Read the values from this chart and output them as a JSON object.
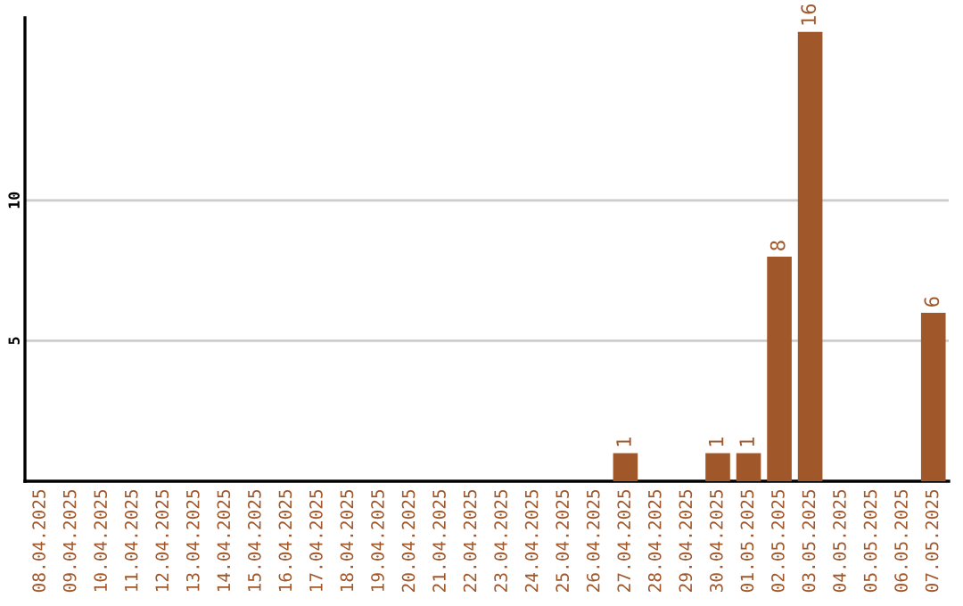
{
  "chart_data": {
    "type": "bar",
    "categories": [
      "08.04.2025",
      "09.04.2025",
      "10.04.2025",
      "11.04.2025",
      "12.04.2025",
      "13.04.2025",
      "14.04.2025",
      "15.04.2025",
      "16.04.2025",
      "17.04.2025",
      "18.04.2025",
      "19.04.2025",
      "20.04.2025",
      "21.04.2025",
      "22.04.2025",
      "23.04.2025",
      "24.04.2025",
      "25.04.2025",
      "26.04.2025",
      "27.04.2025",
      "28.04.2025",
      "29.04.2025",
      "30.04.2025",
      "01.05.2025",
      "02.05.2025",
      "03.05.2025",
      "04.05.2025",
      "05.05.2025",
      "06.05.2025",
      "07.05.2025"
    ],
    "values": [
      0,
      0,
      0,
      0,
      0,
      0,
      0,
      0,
      0,
      0,
      0,
      0,
      0,
      0,
      0,
      0,
      0,
      0,
      0,
      1,
      0,
      0,
      1,
      1,
      8,
      16,
      0,
      0,
      0,
      6
    ],
    "value_labels": [
      null,
      null,
      null,
      null,
      null,
      null,
      null,
      null,
      null,
      null,
      null,
      null,
      null,
      null,
      null,
      null,
      null,
      null,
      null,
      "1",
      null,
      null,
      "1",
      "1",
      "8",
      "16",
      null,
      null,
      null,
      "6"
    ],
    "color": "#a0572a",
    "ylim": [
      0,
      16.5
    ],
    "yticks": [
      5,
      10
    ],
    "grid": "y",
    "legend": false
  }
}
